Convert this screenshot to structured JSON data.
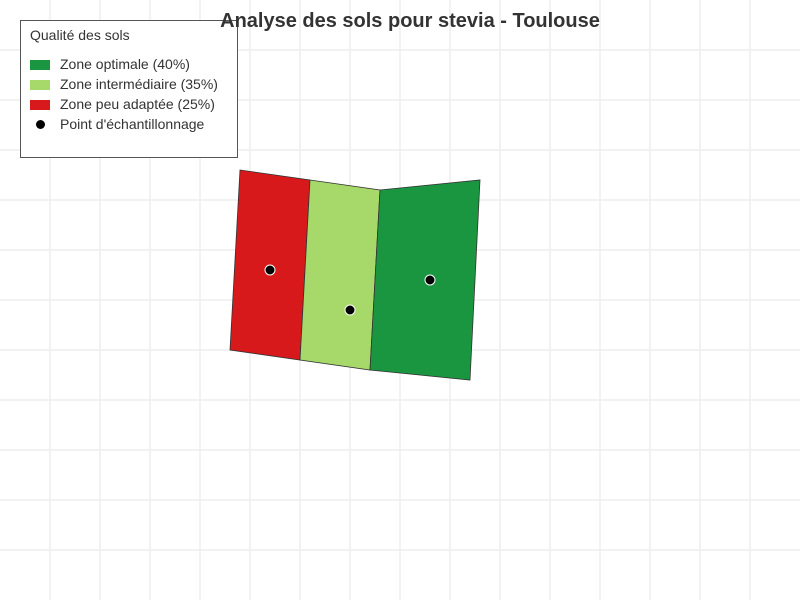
{
  "map": {
    "title": "Analyse des sols pour stevia - Toulouse",
    "legend": {
      "title": "Qualité des sols",
      "items": [
        {
          "label": "Zone optimale (40%)",
          "color": "#1a9641",
          "kind": "swatch"
        },
        {
          "label": "Zone intermédiaire (35%)",
          "color": "#a6d96a",
          "kind": "swatch"
        },
        {
          "label": "Zone peu adaptée (25%)",
          "color": "#d7191c",
          "kind": "swatch"
        },
        {
          "label": "Point d'échantillonnage",
          "color": "#000000",
          "kind": "dot"
        }
      ]
    },
    "zones": [
      {
        "name": "zone-peu-adaptee",
        "color": "#d7191c",
        "share_percent": 25
      },
      {
        "name": "zone-intermediaire",
        "color": "#a6d96a",
        "share_percent": 35
      },
      {
        "name": "zone-optimale",
        "color": "#1a9641",
        "share_percent": 40
      }
    ],
    "sample_points": 3,
    "grid": true,
    "colors": {
      "grid": "#eeeeee",
      "outline": "#333333"
    }
  }
}
